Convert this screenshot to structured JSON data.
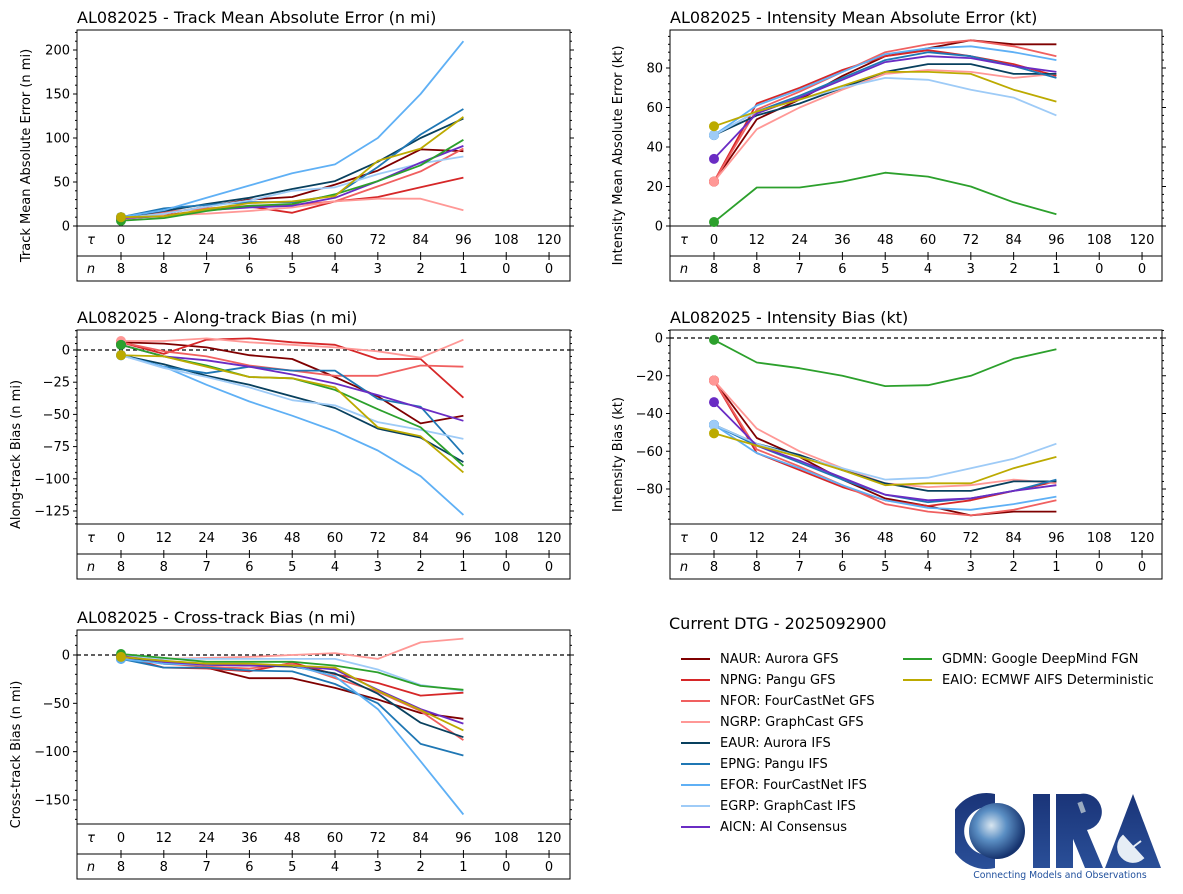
{
  "legend": {
    "title": "Current DTG - 2025092900",
    "items": [
      {
        "code": "NAUR",
        "label": "NAUR: Aurora GFS",
        "color": "#7f0000"
      },
      {
        "code": "NPNG",
        "label": "NPNG: Pangu GFS",
        "color": "#d62728"
      },
      {
        "code": "NFOR",
        "label": "NFOR: FourCastNet GFS",
        "color": "#f06060"
      },
      {
        "code": "NGRP",
        "label": "NGRP: GraphCast GFS",
        "color": "#ff9896"
      },
      {
        "code": "EAUR",
        "label": "EAUR: Aurora IFS",
        "color": "#08405e"
      },
      {
        "code": "EPNG",
        "label": "EPNG: Pangu IFS",
        "color": "#1f77b4"
      },
      {
        "code": "EFOR",
        "label": "EFOR: FourCastNet IFS",
        "color": "#5fb0f5"
      },
      {
        "code": "EGRP",
        "label": "EGRP: GraphCast IFS",
        "color": "#9ecbf7"
      },
      {
        "code": "AICN",
        "label": "AICN: AI Consensus",
        "color": "#6a2cc4"
      },
      {
        "code": "GDMN",
        "label": "GDMN: Google DeepMind FGN",
        "color": "#2ca02c"
      },
      {
        "code": "EAIO",
        "label": "EAIO: ECMWF AIFS Deterministic",
        "color": "#bcaa00"
      }
    ]
  },
  "logo": {
    "name": "CIRA",
    "tagline": "Connecting Models and Observations"
  },
  "chart_data": [
    {
      "id": "track-mae",
      "type": "line",
      "title": "AL082025 - Track Mean Absolute Error (n mi)",
      "ylabel": "Track Mean Absolute Error (n mi)",
      "ylim": [
        0,
        220
      ],
      "yticks": [
        0,
        50,
        100,
        150,
        200
      ],
      "zero_line": false,
      "x": [
        0,
        12,
        24,
        36,
        48,
        60,
        72,
        84,
        96
      ],
      "xticks": [
        0,
        12,
        24,
        36,
        48,
        60,
        72,
        84,
        96,
        108,
        120
      ],
      "n": [
        8,
        8,
        7,
        6,
        5,
        4,
        3,
        2,
        1,
        0,
        0
      ],
      "tau_label": "τ",
      "n_label": "n",
      "series": [
        {
          "name": "NAUR",
          "values": [
            9,
            14,
            22,
            30,
            33,
            47,
            63,
            87,
            85
          ]
        },
        {
          "name": "NPNG",
          "values": [
            8,
            12,
            18,
            22,
            15,
            28,
            33,
            44,
            55
          ]
        },
        {
          "name": "NFOR",
          "values": [
            8,
            16,
            20,
            23,
            24,
            28,
            45,
            62,
            88
          ]
        },
        {
          "name": "NGRP",
          "values": [
            8,
            12,
            14,
            17,
            21,
            28,
            31,
            31,
            18
          ]
        },
        {
          "name": "EAUR",
          "values": [
            10,
            17,
            25,
            32,
            42,
            51,
            73,
            100,
            122
          ]
        },
        {
          "name": "EPNG",
          "values": [
            10,
            20,
            24,
            27,
            27,
            35,
            67,
            104,
            133
          ]
        },
        {
          "name": "EFOR",
          "values": [
            10,
            18,
            32,
            46,
            60,
            70,
            100,
            150,
            210
          ]
        },
        {
          "name": "EGRP",
          "values": [
            9,
            14,
            22,
            29,
            40,
            44,
            59,
            71,
            79
          ]
        },
        {
          "name": "AICN",
          "values": [
            9,
            11,
            18,
            21,
            23,
            32,
            51,
            72,
            91
          ]
        },
        {
          "name": "GDMN",
          "values": [
            6,
            9,
            17,
            23,
            25,
            36,
            51,
            69,
            98
          ]
        },
        {
          "name": "EAIO",
          "values": [
            10,
            11,
            19,
            26,
            28,
            34,
            74,
            88,
            124
          ]
        }
      ]
    },
    {
      "id": "intensity-mae",
      "type": "line",
      "title": "AL082025 - Intensity Mean Absolute Error (kt)",
      "ylabel": "Intensity Mean Absolute Error (kt)",
      "ylim": [
        0,
        99
      ],
      "yticks": [
        0,
        20,
        40,
        60,
        80
      ],
      "zero_line": false,
      "x": [
        0,
        12,
        24,
        36,
        48,
        60,
        72,
        84,
        96
      ],
      "xticks": [
        0,
        12,
        24,
        36,
        48,
        60,
        72,
        84,
        96,
        108,
        120
      ],
      "n": [
        8,
        8,
        7,
        6,
        5,
        4,
        3,
        2,
        1,
        0,
        0
      ],
      "tau_label": "τ",
      "n_label": "n",
      "series": [
        {
          "name": "NAUR",
          "values": [
            22.5,
            54,
            64,
            76,
            86,
            90,
            94,
            92,
            92
          ]
        },
        {
          "name": "NPNG",
          "values": [
            22.5,
            62,
            70,
            79,
            86,
            89,
            86,
            82,
            76
          ]
        },
        {
          "name": "NFOR",
          "values": [
            22.5,
            59,
            68,
            78,
            88,
            92,
            94,
            91,
            86
          ]
        },
        {
          "name": "NGRP",
          "values": [
            22.5,
            49,
            60,
            69,
            77,
            79,
            78,
            75,
            77
          ]
        },
        {
          "name": "EAUR",
          "values": [
            46,
            56,
            62,
            70,
            78,
            82,
            82,
            77,
            77
          ]
        },
        {
          "name": "EPNG",
          "values": [
            46,
            58,
            66,
            75,
            84,
            88,
            86,
            81,
            75
          ]
        },
        {
          "name": "EFOR",
          "values": [
            46,
            61,
            69,
            78,
            87,
            90,
            91,
            88,
            84
          ]
        },
        {
          "name": "EGRP",
          "values": [
            46,
            58,
            64,
            70,
            75,
            74,
            69,
            65,
            56
          ]
        },
        {
          "name": "AICN",
          "values": [
            34,
            57,
            65,
            74,
            83,
            86,
            85,
            81,
            78
          ]
        },
        {
          "name": "GDMN",
          "values": [
            2,
            19.5,
            19.5,
            22.5,
            27,
            25,
            20,
            12,
            6
          ]
        },
        {
          "name": "EAIO",
          "values": [
            50.5,
            58,
            64,
            71,
            78,
            78,
            77,
            69,
            63
          ]
        }
      ]
    },
    {
      "id": "along-track-bias",
      "type": "line",
      "title": "AL082025 - Along-track Bias (n mi)",
      "ylabel": "Along-track Bias (n mi)",
      "ylim": [
        -135,
        15
      ],
      "yticks": [
        0,
        -25,
        -50,
        -75,
        -100,
        -125
      ],
      "zero_line": true,
      "x": [
        0,
        12,
        24,
        36,
        48,
        60,
        72,
        84,
        96
      ],
      "xticks": [
        0,
        12,
        24,
        36,
        48,
        60,
        72,
        84,
        96,
        108,
        120
      ],
      "n": [
        8,
        8,
        7,
        6,
        5,
        4,
        3,
        2,
        1,
        0,
        0
      ],
      "tau_label": "τ",
      "n_label": "n",
      "series": [
        {
          "name": "NAUR",
          "values": [
            6,
            5,
            2,
            -4,
            -7,
            -21,
            -36,
            -57,
            -51
          ]
        },
        {
          "name": "NPNG",
          "values": [
            6,
            -3,
            8,
            9,
            6,
            4,
            -7,
            -7,
            -37
          ]
        },
        {
          "name": "NFOR",
          "values": [
            6,
            -1,
            -5,
            -12,
            -16,
            -20,
            -20,
            -12,
            -13
          ]
        },
        {
          "name": "NGRP",
          "values": [
            7,
            7,
            9,
            6,
            4,
            2,
            -1,
            -6,
            8
          ]
        },
        {
          "name": "EAUR",
          "values": [
            -4,
            -11,
            -20,
            -27,
            -36,
            -45,
            -61,
            -68,
            -87
          ]
        },
        {
          "name": "EPNG",
          "values": [
            -4,
            -13,
            -18,
            -13,
            -16,
            -16,
            -38,
            -44,
            -81
          ]
        },
        {
          "name": "EFOR",
          "values": [
            -4,
            -13,
            -27,
            -40,
            -51,
            -63,
            -78,
            -98,
            -128
          ]
        },
        {
          "name": "EGRP",
          "values": [
            -4,
            -14,
            -21,
            -29,
            -39,
            -43,
            -56,
            -62,
            -69
          ]
        },
        {
          "name": "AICN",
          "values": [
            4,
            -5,
            -8,
            -13,
            -19,
            -26,
            -35,
            -45,
            -55
          ]
        },
        {
          "name": "GDMN",
          "values": [
            4,
            -5,
            -12,
            -21,
            -22,
            -31,
            -46,
            -60,
            -90
          ]
        },
        {
          "name": "EAIO",
          "values": [
            -4,
            -5,
            -13,
            -21,
            -22,
            -29,
            -60,
            -67,
            -95
          ]
        }
      ]
    },
    {
      "id": "intensity-bias",
      "type": "line",
      "title": "AL082025 - Intensity Bias (kt)",
      "ylabel": "Intensity Bias (kt)",
      "ylim": [
        -99,
        4
      ],
      "yticks": [
        0,
        -20,
        -40,
        -60,
        -80
      ],
      "zero_line": true,
      "x": [
        0,
        12,
        24,
        36,
        48,
        60,
        72,
        84,
        96
      ],
      "xticks": [
        0,
        12,
        24,
        36,
        48,
        60,
        72,
        84,
        96,
        108,
        120
      ],
      "n": [
        8,
        8,
        7,
        6,
        5,
        4,
        3,
        2,
        1,
        0,
        0
      ],
      "tau_label": "τ",
      "n_label": "n",
      "series": [
        {
          "name": "NAUR",
          "values": [
            -22.5,
            -53,
            -63,
            -75,
            -85,
            -89,
            -94,
            -92,
            -92
          ]
        },
        {
          "name": "NPNG",
          "values": [
            -22.5,
            -61,
            -70,
            -79,
            -86,
            -89,
            -86,
            -81,
            -76
          ]
        },
        {
          "name": "NFOR",
          "values": [
            -22.5,
            -59,
            -68,
            -78,
            -88,
            -92,
            -94,
            -91,
            -86
          ]
        },
        {
          "name": "NGRP",
          "values": [
            -22.5,
            -48,
            -60,
            -69,
            -77,
            -79,
            -78,
            -75,
            -77
          ]
        },
        {
          "name": "EAUR",
          "values": [
            -46,
            -56,
            -62,
            -70,
            -77,
            -81,
            -81,
            -76,
            -76
          ]
        },
        {
          "name": "EPNG",
          "values": [
            -46,
            -57,
            -66,
            -75,
            -83,
            -87,
            -85,
            -81,
            -75
          ]
        },
        {
          "name": "EFOR",
          "values": [
            -46,
            -61,
            -69,
            -78,
            -86,
            -90,
            -91,
            -88,
            -84
          ]
        },
        {
          "name": "EGRP",
          "values": [
            -46,
            -56,
            -63,
            -69,
            -75,
            -74,
            -69,
            -64,
            -56
          ]
        },
        {
          "name": "AICN",
          "values": [
            -34,
            -57,
            -65,
            -74,
            -83,
            -86,
            -85,
            -81,
            -78
          ]
        },
        {
          "name": "GDMN",
          "values": [
            -1,
            -13,
            -16,
            -20,
            -25.5,
            -25,
            -20,
            -11,
            -6
          ]
        },
        {
          "name": "EAIO",
          "values": [
            -50.5,
            -57,
            -63,
            -70,
            -78,
            -77,
            -77,
            -69,
            -63
          ]
        }
      ]
    },
    {
      "id": "cross-track-bias",
      "type": "line",
      "title": "AL082025 - Cross-track Bias (n mi)",
      "ylabel": "Cross-track Bias (n mi)",
      "ylim": [
        -175,
        25
      ],
      "yticks": [
        0,
        -50,
        -100,
        -150
      ],
      "zero_line": true,
      "x": [
        0,
        12,
        24,
        36,
        48,
        60,
        72,
        84,
        96
      ],
      "xticks": [
        0,
        12,
        24,
        36,
        48,
        60,
        72,
        84,
        96,
        108,
        120
      ],
      "n": [
        8,
        8,
        7,
        6,
        5,
        4,
        3,
        2,
        1,
        0,
        0
      ],
      "tau_label": "τ",
      "n_label": "n",
      "series": [
        {
          "name": "NAUR",
          "values": [
            -1,
            -6,
            -13,
            -24,
            -24,
            -34,
            -46,
            -60,
            -66
          ]
        },
        {
          "name": "NPNG",
          "values": [
            -1,
            -13,
            -14,
            -17,
            -8,
            -20,
            -29,
            -42,
            -39
          ]
        },
        {
          "name": "NFOR",
          "values": [
            -1,
            -9,
            -12,
            -14,
            -9,
            -24,
            -38,
            -58,
            -88
          ]
        },
        {
          "name": "NGRP",
          "values": [
            -1,
            -4,
            -3,
            -2,
            0,
            2,
            -4,
            13,
            17
          ]
        },
        {
          "name": "EAUR",
          "values": [
            -1,
            -9,
            -10,
            -11,
            -12,
            -19,
            -40,
            -70,
            -85
          ]
        },
        {
          "name": "EPNG",
          "values": [
            -4,
            -13,
            -13,
            -16,
            -17,
            -30,
            -50,
            -92,
            -104
          ]
        },
        {
          "name": "EFOR",
          "values": [
            -4,
            -9,
            -10,
            -10,
            -11,
            -22,
            -56,
            -110,
            -165
          ]
        },
        {
          "name": "EGRP",
          "values": [
            -1,
            -4,
            -4,
            -4,
            -4,
            -4,
            -15,
            -31,
            -37
          ]
        },
        {
          "name": "AICN",
          "values": [
            -1,
            -7,
            -10,
            -11,
            -11,
            -15,
            -36,
            -56,
            -71
          ]
        },
        {
          "name": "GDMN",
          "values": [
            1,
            -3,
            -7,
            -7,
            -7,
            -11,
            -18,
            -32,
            -36
          ]
        },
        {
          "name": "EAIO",
          "values": [
            -2,
            -6,
            -9,
            -9,
            -11,
            -13,
            -37,
            -57,
            -78
          ]
        }
      ]
    }
  ]
}
